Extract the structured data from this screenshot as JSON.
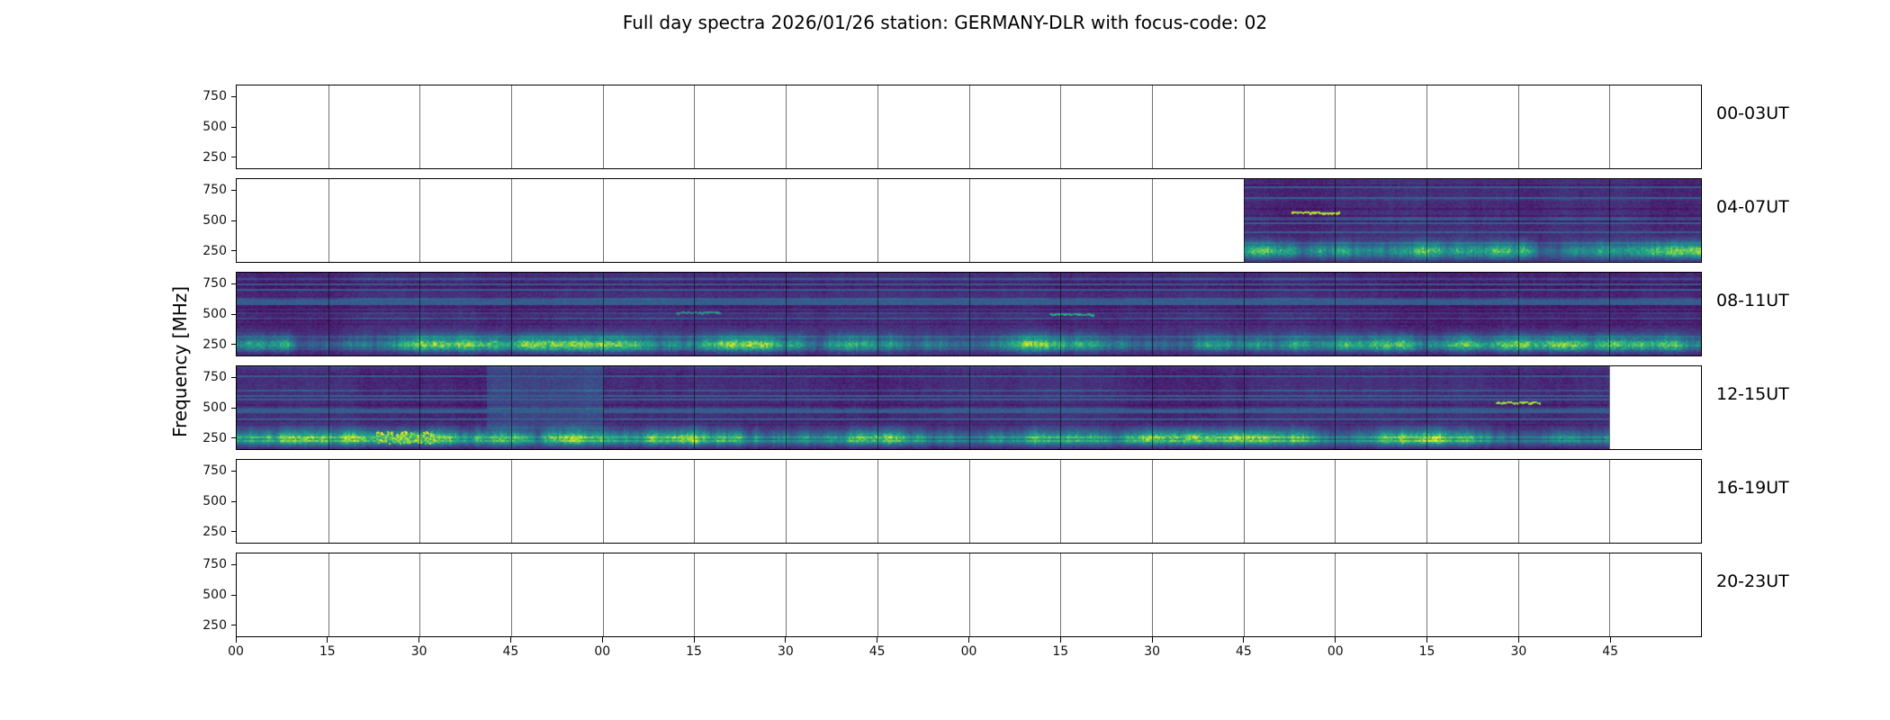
{
  "title": "Full day spectra 2026/01/26 station: GERMANY-DLR with focus-code: 02",
  "chart_data": {
    "type": "heatmap",
    "title": "Full day spectra 2026/01/26 station: GERMANY-DLR with focus-code: 02",
    "subtitle": "",
    "ylabel": "Frequency [MHz]",
    "colormap": "viridis",
    "background_color": "#ffffff",
    "spectrogram_base_color": "#3a2a68",
    "bright_band_color": "#5ec962",
    "y_ticks": [
      "750",
      "500",
      "250"
    ],
    "y_range_mhz": [
      150,
      850
    ],
    "x_tick_labels": [
      "00",
      "15",
      "30",
      "45",
      "00",
      "15",
      "30",
      "45",
      "00",
      "15",
      "30",
      "45",
      "00",
      "15",
      "30",
      "45"
    ],
    "segments_per_panel": 16,
    "minutes_per_segment": 15,
    "grid": true,
    "legend": "none",
    "panels": [
      {
        "label": "00-03UT",
        "has_data": false,
        "coverage": [],
        "seed": 1,
        "features": []
      },
      {
        "label": "04-07UT",
        "has_data": true,
        "coverage": [
          {
            "start": 0.6875,
            "end": 1.0
          }
        ],
        "seed": 11,
        "features": [
          {
            "kind": "bright-line",
            "y_frac": 0.4,
            "x0": 0.72,
            "x1": 0.752,
            "intensity": 0.95
          }
        ]
      },
      {
        "label": "08-11UT",
        "has_data": true,
        "coverage": [
          {
            "start": 0.0,
            "end": 1.0
          }
        ],
        "seed": 23,
        "features": [
          {
            "kind": "bright-line",
            "y_frac": 0.5,
            "x0": 0.555,
            "x1": 0.585,
            "intensity": 0.62
          },
          {
            "kind": "bright-line",
            "y_frac": 0.48,
            "x0": 0.3,
            "x1": 0.33,
            "intensity": 0.55
          }
        ]
      },
      {
        "label": "12-15UT",
        "has_data": true,
        "coverage": [
          {
            "start": 0.0,
            "end": 0.9375
          }
        ],
        "seed": 37,
        "features": [
          {
            "kind": "hotspot",
            "y_frac": 0.85,
            "x0": 0.095,
            "x1": 0.135,
            "intensity": 1.0
          },
          {
            "kind": "bright-line",
            "y_frac": 0.44,
            "x0": 0.86,
            "x1": 0.89,
            "intensity": 0.9
          },
          {
            "kind": "col-boost",
            "x0": 0.17,
            "x1": 0.25,
            "amount": 0.1
          }
        ]
      },
      {
        "label": "16-19UT",
        "has_data": false,
        "coverage": [],
        "seed": 2,
        "features": []
      },
      {
        "label": "20-23UT",
        "has_data": false,
        "coverage": [],
        "seed": 3,
        "features": []
      }
    ]
  }
}
